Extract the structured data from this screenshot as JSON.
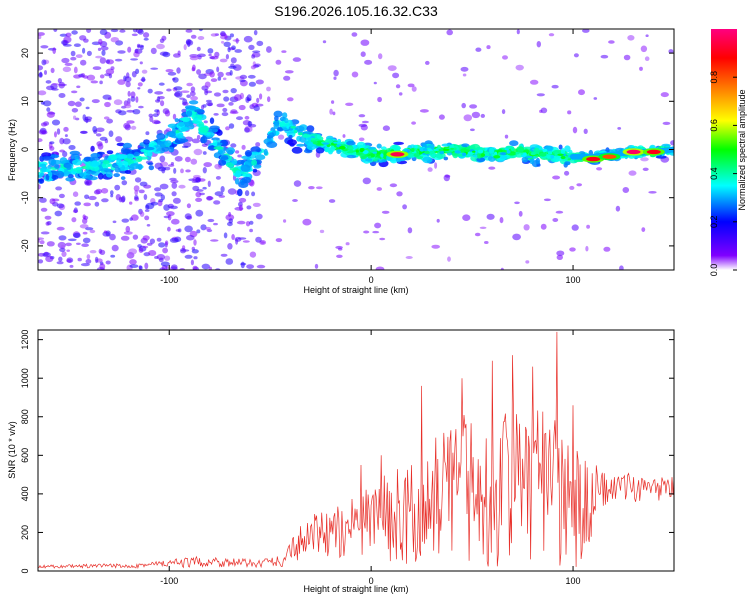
{
  "page_title": "S196.2026.105.16.32.C33",
  "chart_data": [
    {
      "type": "heatmap",
      "title": "S196.2026.105.16.32.C33",
      "xlabel": "Height of straight line (km)",
      "ylabel": "Frequency (Hz)",
      "xlim": [
        -165,
        150
      ],
      "ylim": [
        -25,
        25
      ],
      "xticks": [
        -100,
        0,
        100
      ],
      "yticks": [
        -20,
        -10,
        0,
        10,
        20
      ],
      "ridge": {
        "x": [
          -165,
          -150,
          -130,
          -115,
          -105,
          -95,
          -88,
          -80,
          -72,
          -65,
          -58,
          -52,
          -45,
          -38,
          -30,
          -20,
          -10,
          0,
          10,
          20,
          30,
          40,
          50,
          60,
          70,
          80,
          90,
          100,
          110,
          120,
          130,
          140,
          150
        ],
        "y": [
          -4,
          -4,
          -3,
          -2,
          0,
          4,
          8,
          3,
          -1,
          -6,
          -2,
          0,
          6,
          4,
          2,
          1,
          0,
          -1,
          -1,
          -0.5,
          -0.5,
          0,
          -0.5,
          -1,
          -0.5,
          -1,
          -1,
          -1.5,
          -1.5,
          -1,
          -0.5,
          -0.5,
          0
        ]
      },
      "peaks": [
        {
          "x": 13,
          "y": -1,
          "amp": 0.95
        },
        {
          "x": 110,
          "y": -2,
          "amp": 0.9
        },
        {
          "x": 118,
          "y": -1.5,
          "amp": 0.8
        },
        {
          "x": 130,
          "y": -0.5,
          "amp": 0.97
        },
        {
          "x": 140,
          "y": -0.5,
          "amp": 0.9
        }
      ],
      "colorbar": {
        "label": "Normalized spectral amplitude",
        "range": [
          0,
          1
        ],
        "ticks": [
          0.0,
          0.2,
          0.4,
          0.6,
          0.8
        ],
        "tick_labels": [
          "0.0",
          "0.2",
          "0.4",
          "0.6",
          "0.8"
        ],
        "colors": [
          "#ffffff",
          "#8000ff",
          "#0000ff",
          "#00ffff",
          "#00ff00",
          "#ffff00",
          "#ff8000",
          "#ff0000",
          "#ff0080"
        ]
      }
    },
    {
      "type": "line",
      "xlabel": "Height of straight line (km)",
      "ylabel": "SNR (10 * v/v)",
      "xlim": [
        -165,
        150
      ],
      "ylim": [
        0,
        1250
      ],
      "xticks": [
        -100,
        0,
        100
      ],
      "yticks": [
        0,
        200,
        400,
        600,
        800,
        1000,
        1200
      ],
      "series": [
        {
          "name": "SNR",
          "color": "#e8302a",
          "envelope_x": [
            -165,
            -120,
            -80,
            -60,
            -45,
            -35,
            -25,
            -15,
            -5,
            5,
            15,
            25,
            35,
            45,
            55,
            65,
            75,
            85,
            95,
            105,
            115,
            125,
            135,
            150
          ],
          "envelope_hi": [
            30,
            40,
            80,
            60,
            80,
            240,
            300,
            350,
            430,
            500,
            560,
            600,
            750,
            760,
            780,
            800,
            820,
            760,
            700,
            600,
            520,
            500,
            500,
            500
          ],
          "envelope_lo": [
            15,
            15,
            20,
            20,
            20,
            50,
            80,
            60,
            50,
            40,
            40,
            30,
            20,
            20,
            20,
            10,
            10,
            10,
            10,
            10,
            330,
            350,
            360,
            360
          ],
          "spikes": [
            [
              -5,
              550
            ],
            [
              5,
              600
            ],
            [
              25,
              960
            ],
            [
              45,
              1000
            ],
            [
              60,
              1090
            ],
            [
              70,
              1120
            ],
            [
              80,
              1060
            ],
            [
              92,
              1240
            ],
            [
              100,
              860
            ]
          ]
        }
      ]
    }
  ]
}
